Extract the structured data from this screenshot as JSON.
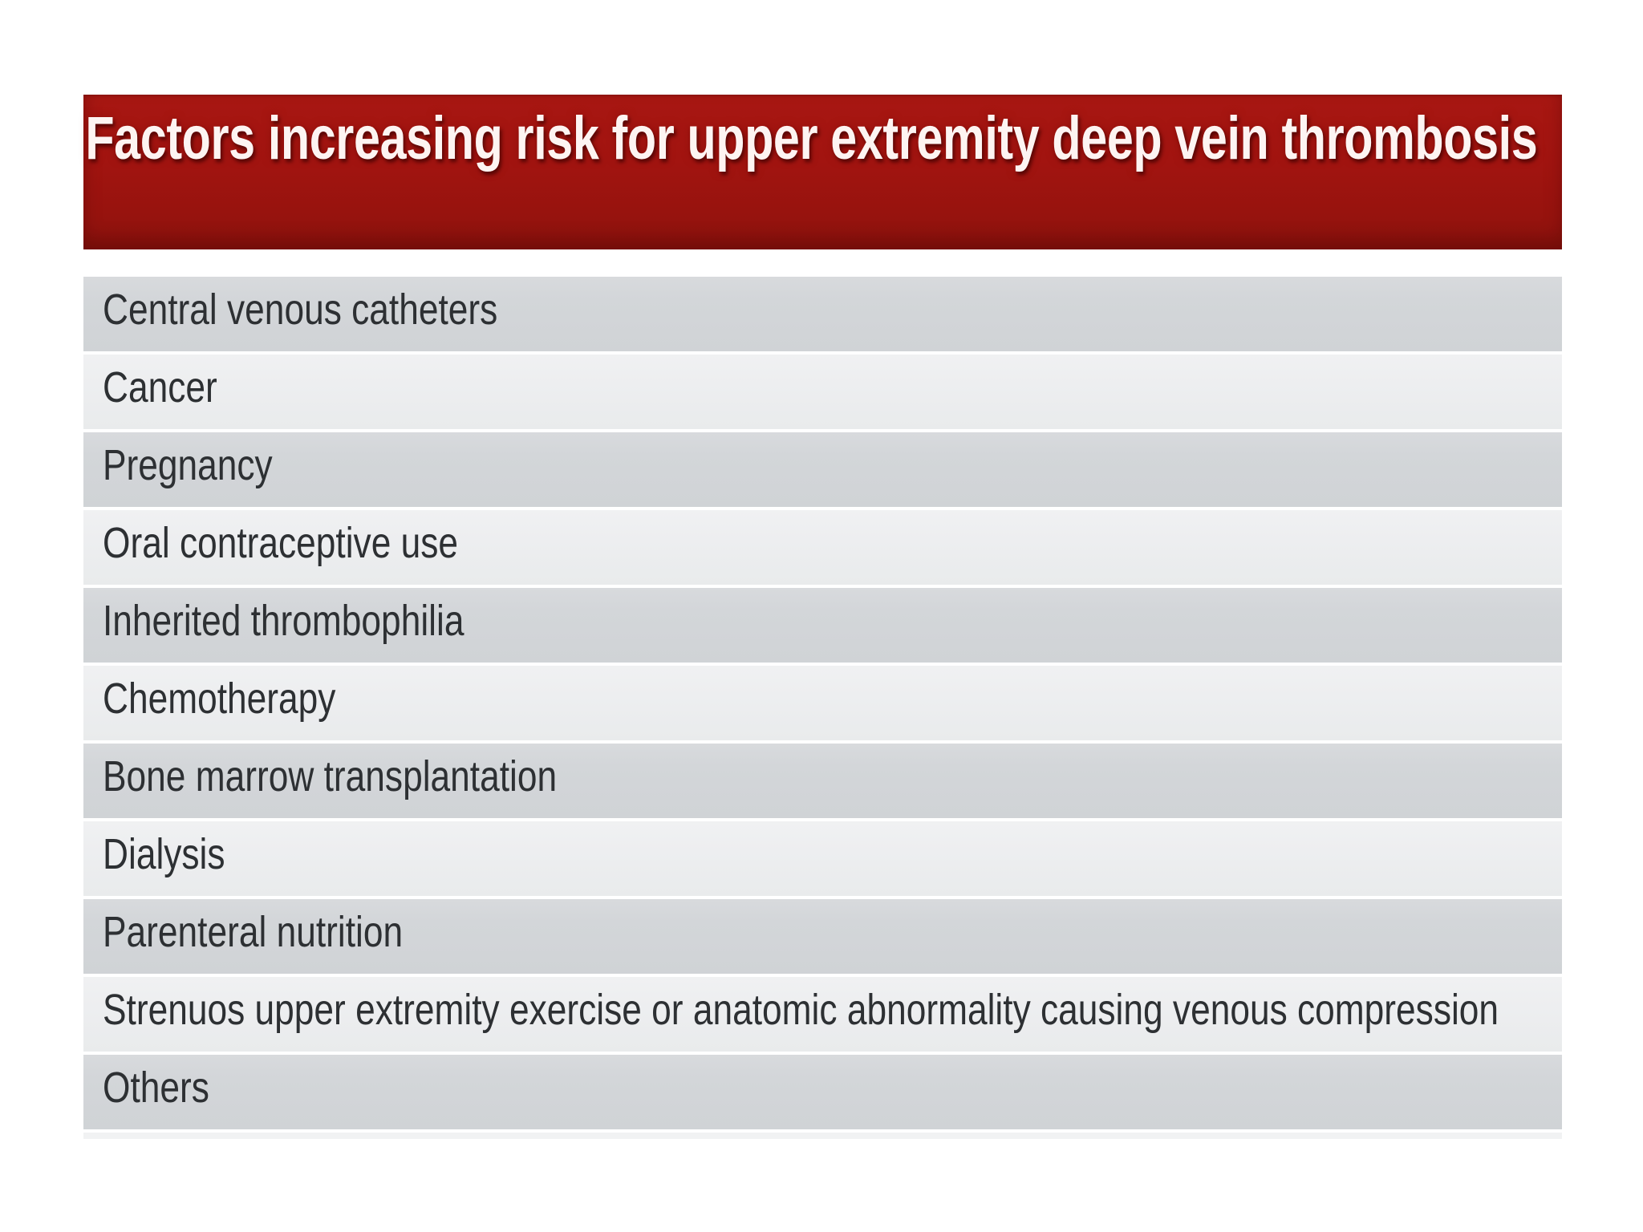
{
  "title": "Factors increasing risk for upper extremity deep vein thrombosis",
  "colors": {
    "banner_red_top": "#a81712",
    "banner_red_bottom": "#8a120d",
    "title_text": "#fdf4f2",
    "row_dark_gray": "#d3d6d9",
    "row_light_gray": "#edeef0",
    "row_text": "#2d3033",
    "background": "#ffffff"
  },
  "table": {
    "rows": [
      "Central venous catheters",
      "Cancer",
      "Pregnancy",
      "Oral contraceptive use",
      "Inherited thrombophilia",
      "Chemotherapy",
      "Bone marrow transplantation",
      "Dialysis",
      "Parenteral nutrition",
      "Strenuos upper extremity exercise or anatomic abnormality causing venous compression",
      "Others"
    ]
  }
}
